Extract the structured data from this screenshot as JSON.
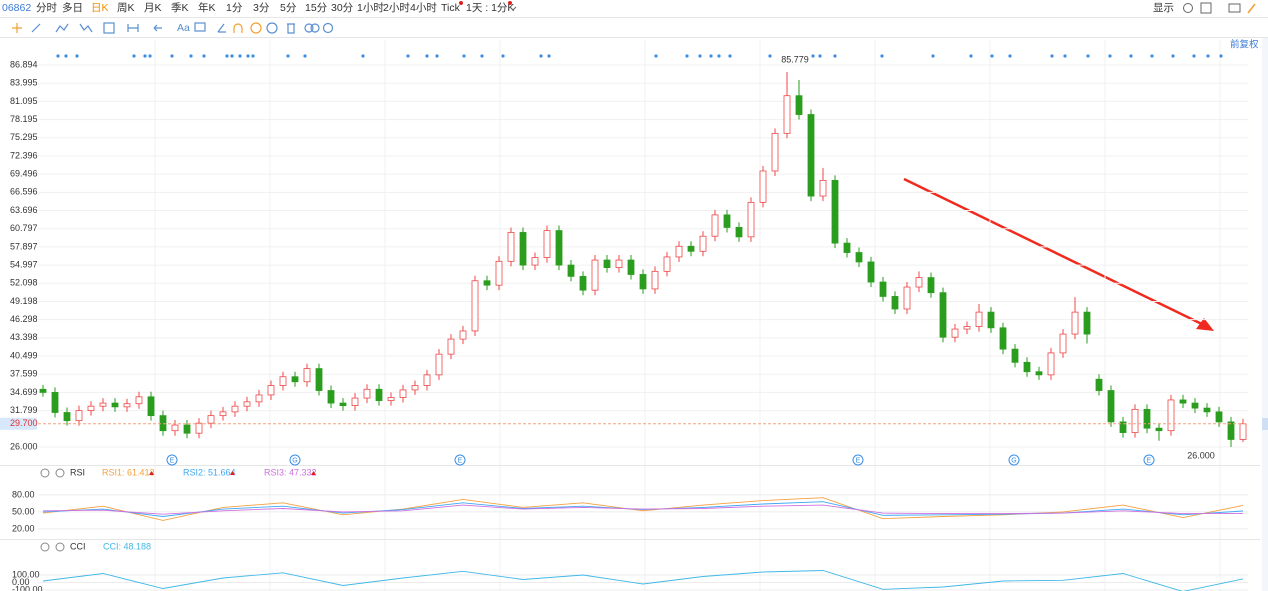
{
  "toolbar": {
    "code": "06862",
    "periods": [
      "分时",
      "多日",
      "日K",
      "周K",
      "月K",
      "季K",
      "年K",
      "1分",
      "3分",
      "5分",
      "15分",
      "30分",
      "1小时",
      "2小时",
      "4小时",
      "Tick",
      "1天 : 1分K"
    ],
    "active": "日K",
    "display": "显示",
    "font_tool": "Aa"
  },
  "chart_data": {
    "type": "candlestick",
    "adjust": "前复权",
    "up_color": "#f04848",
    "down_color": "#2a9d1e",
    "ylim": [
      23.13,
      90.88
    ],
    "yticks": [
      {
        "value": 26,
        "label": "26.000"
      },
      31.799,
      34.699,
      37.599,
      40.499,
      43.398,
      46.298,
      49.198,
      52.098,
      54.997,
      57.897,
      60.797,
      63.696,
      66.596,
      69.496,
      72.396,
      75.295,
      78.195,
      81.095,
      83.995,
      86.894
    ],
    "grid": true,
    "last_price": {
      "value": 29.7,
      "label": "29.700"
    },
    "max_label": {
      "value": 85.779,
      "candle": 62
    },
    "min_label": {
      "value": 26,
      "label": "26.000",
      "candle": 99
    },
    "event_markers": [
      "E",
      "G",
      "E",
      "E",
      "G",
      "E"
    ],
    "candles": [
      [
        35.2,
        35.9,
        34.0,
        34.7
      ],
      [
        34.7,
        35.5,
        30.7,
        31.5
      ],
      [
        31.5,
        32.3,
        29.4,
        30.2
      ],
      [
        30.2,
        32.6,
        29.4,
        31.8
      ],
      [
        31.8,
        33.3,
        31.0,
        32.5
      ],
      [
        32.5,
        33.8,
        31.7,
        33.0
      ],
      [
        33.0,
        33.8,
        31.6,
        32.4
      ],
      [
        32.4,
        33.7,
        31.6,
        32.9
      ],
      [
        32.9,
        34.8,
        32.1,
        34.0
      ],
      [
        34.0,
        34.8,
        30.2,
        31.0
      ],
      [
        31.0,
        31.8,
        27.8,
        28.6
      ],
      [
        28.6,
        30.3,
        27.8,
        29.5
      ],
      [
        29.5,
        30.3,
        27.4,
        28.2
      ],
      [
        28.2,
        30.6,
        27.4,
        29.8
      ],
      [
        29.8,
        31.8,
        29.0,
        31.0
      ],
      [
        31.0,
        32.4,
        30.2,
        31.6
      ],
      [
        31.6,
        33.3,
        30.8,
        32.5
      ],
      [
        32.5,
        34.0,
        31.7,
        33.2
      ],
      [
        33.2,
        35.1,
        32.4,
        34.3
      ],
      [
        34.3,
        36.6,
        33.5,
        35.8
      ],
      [
        35.8,
        38.0,
        35.0,
        37.2
      ],
      [
        37.2,
        38.0,
        35.6,
        36.4
      ],
      [
        36.4,
        39.3,
        35.6,
        38.5
      ],
      [
        38.5,
        39.3,
        34.2,
        35.0
      ],
      [
        35.0,
        35.8,
        32.2,
        33.0
      ],
      [
        33.0,
        33.8,
        31.8,
        32.6
      ],
      [
        32.6,
        34.6,
        31.8,
        33.8
      ],
      [
        33.8,
        36.0,
        33.0,
        35.2
      ],
      [
        35.2,
        36.0,
        32.6,
        33.4
      ],
      [
        33.4,
        34.7,
        32.6,
        33.9
      ],
      [
        33.9,
        35.9,
        33.1,
        35.1
      ],
      [
        35.1,
        36.6,
        34.3,
        35.8
      ],
      [
        35.8,
        38.3,
        35.0,
        37.5
      ],
      [
        37.5,
        41.6,
        36.7,
        40.8
      ],
      [
        40.8,
        44.0,
        40.0,
        43.2
      ],
      [
        43.2,
        45.3,
        42.4,
        44.5
      ],
      [
        44.5,
        53.3,
        43.7,
        52.5
      ],
      [
        52.5,
        53.3,
        51.0,
        51.8
      ],
      [
        51.8,
        56.4,
        51.0,
        55.6
      ],
      [
        55.6,
        61.0,
        54.8,
        60.2
      ],
      [
        60.2,
        61.0,
        54.2,
        55.0
      ],
      [
        55.0,
        57.0,
        54.2,
        56.2
      ],
      [
        56.2,
        61.3,
        55.4,
        60.5
      ],
      [
        60.5,
        61.3,
        54.2,
        55.0
      ],
      [
        55.0,
        55.8,
        52.4,
        53.2
      ],
      [
        53.2,
        54.0,
        50.2,
        51.0
      ],
      [
        51.0,
        56.6,
        50.2,
        55.8
      ],
      [
        55.8,
        56.6,
        53.8,
        54.6
      ],
      [
        54.6,
        56.6,
        53.8,
        55.8
      ],
      [
        55.8,
        56.6,
        52.7,
        53.5
      ],
      [
        53.5,
        54.3,
        50.4,
        51.2
      ],
      [
        51.2,
        54.8,
        50.4,
        54.0
      ],
      [
        54.0,
        57.1,
        53.2,
        56.3
      ],
      [
        56.3,
        58.8,
        55.5,
        58.0
      ],
      [
        58.0,
        58.8,
        56.4,
        57.2
      ],
      [
        57.2,
        60.4,
        56.4,
        59.6
      ],
      [
        59.6,
        63.8,
        58.8,
        63.0
      ],
      [
        63.0,
        63.8,
        60.2,
        61.0
      ],
      [
        61.0,
        61.8,
        58.7,
        59.5
      ],
      [
        59.5,
        65.8,
        58.7,
        65.0
      ],
      [
        65.0,
        70.8,
        64.2,
        70.0
      ],
      [
        70.0,
        76.8,
        69.2,
        76.0
      ],
      [
        76.0,
        85.779,
        75.2,
        82.0
      ],
      [
        82.0,
        84.5,
        78.2,
        79.0
      ],
      [
        79.0,
        79.8,
        65.2,
        66.0
      ],
      [
        66.0,
        70.5,
        65.2,
        68.5
      ],
      [
        68.5,
        69.3,
        57.7,
        58.5
      ],
      [
        58.5,
        59.3,
        56.2,
        57.0
      ],
      [
        57.0,
        57.8,
        54.7,
        55.5
      ],
      [
        55.5,
        56.3,
        51.5,
        52.3
      ],
      [
        52.3,
        53.1,
        49.2,
        50.0
      ],
      [
        50.0,
        50.8,
        47.2,
        48.0
      ],
      [
        48.0,
        52.3,
        47.2,
        51.5
      ],
      [
        51.5,
        54.0,
        50.7,
        53.0
      ],
      [
        53.0,
        53.8,
        49.8,
        50.6
      ],
      [
        50.6,
        51.4,
        42.7,
        43.5
      ],
      [
        43.5,
        45.6,
        42.7,
        44.8
      ],
      [
        44.8,
        46.0,
        44.0,
        45.2
      ],
      [
        45.2,
        48.8,
        44.4,
        47.5
      ],
      [
        47.5,
        48.3,
        44.2,
        45.0
      ],
      [
        45.0,
        45.8,
        40.8,
        41.6
      ],
      [
        41.6,
        42.4,
        38.7,
        39.5
      ],
      [
        39.5,
        40.3,
        37.2,
        38.0
      ],
      [
        38.0,
        38.8,
        36.7,
        37.5
      ],
      [
        37.5,
        41.8,
        36.7,
        41.0
      ],
      [
        41.0,
        44.8,
        40.2,
        44.0
      ],
      [
        44.0,
        49.9,
        43.2,
        47.5
      ],
      [
        47.5,
        48.3,
        42.5,
        44.0
      ],
      [
        36.8,
        37.6,
        34.2,
        35.0
      ],
      [
        35.0,
        35.8,
        29.2,
        30.0
      ],
      [
        30.0,
        30.8,
        27.5,
        28.3
      ],
      [
        28.3,
        32.8,
        27.5,
        32.0
      ],
      [
        32.0,
        32.8,
        28.2,
        29.0
      ],
      [
        29.0,
        29.8,
        27.0,
        28.6
      ],
      [
        28.6,
        34.3,
        27.8,
        33.5
      ],
      [
        33.5,
        34.3,
        32.2,
        33.0
      ],
      [
        33.0,
        33.8,
        31.4,
        32.2
      ],
      [
        32.2,
        33.0,
        30.8,
        31.6
      ],
      [
        31.6,
        32.4,
        29.2,
        30.0
      ],
      [
        30.0,
        30.8,
        26.0,
        27.2
      ],
      [
        27.2,
        30.5,
        26.8,
        29.7
      ]
    ],
    "rsi": {
      "title": "RSI",
      "ylim": [
        4,
        101
      ],
      "yticks": [
        {
          "value": 80,
          "label": "80.00"
        },
        {
          "value": 50,
          "label": "50.00"
        },
        {
          "value": 20,
          "label": "20.00"
        }
      ],
      "series": [
        {
          "name": "RSI1: 61.413",
          "color": "#f5a040",
          "values": [
            48,
            60,
            35,
            58,
            66,
            45,
            55,
            72,
            58,
            66,
            52,
            62,
            70,
            75,
            38,
            42,
            45,
            50,
            62,
            40,
            61.413
          ]
        },
        {
          "name": "RSI2: 51.664",
          "color": "#3fa9f5",
          "values": [
            50,
            55,
            42,
            55,
            60,
            48,
            54,
            66,
            56,
            60,
            54,
            58,
            64,
            68,
            44,
            45,
            46,
            48,
            55,
            45,
            51.664
          ]
        },
        {
          "name": "RSI3: 47.332",
          "color": "#d070e0",
          "values": [
            52,
            53,
            46,
            52,
            56,
            50,
            52,
            62,
            55,
            58,
            55,
            56,
            60,
            62,
            48,
            47,
            47,
            48,
            52,
            47,
            47.332
          ]
        }
      ]
    },
    "cci": {
      "title": "CCI",
      "ylim": [
        -113,
        300
      ],
      "yticks": [
        {
          "value": 100,
          "label": "100.00"
        },
        {
          "value": 0,
          "label": "0.00"
        },
        {
          "value": -100,
          "label": "-100.00"
        }
      ],
      "series": [
        {
          "name": "CCI: 48.188",
          "color": "#41b8e8",
          "values": [
            20,
            120,
            -80,
            60,
            130,
            -40,
            60,
            150,
            40,
            100,
            -20,
            80,
            140,
            160,
            -90,
            -60,
            20,
            30,
            120,
            -120,
            48.188
          ]
        }
      ]
    }
  }
}
